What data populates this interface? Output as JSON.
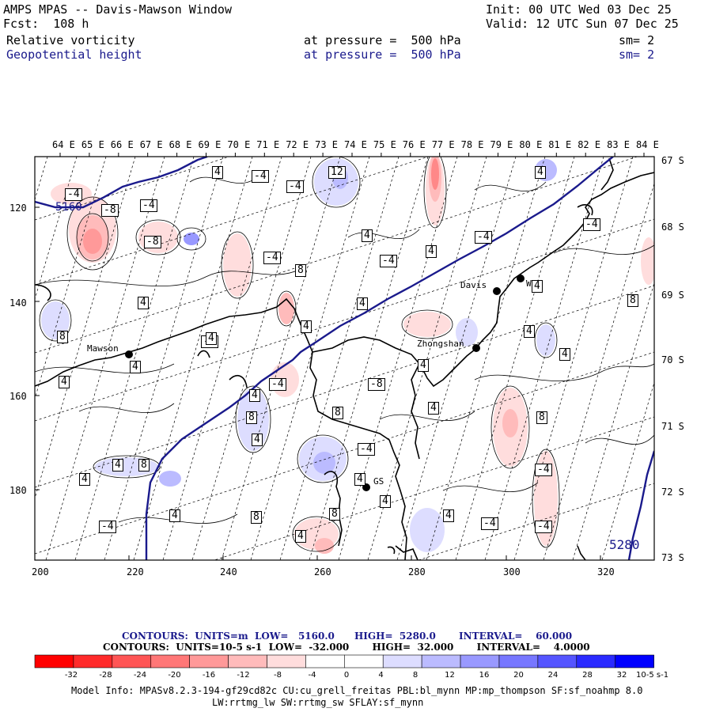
{
  "header": {
    "title": "AMPS MPAS -- Davis-Mawson Window",
    "fcst": "Fcst:  108 h",
    "init": "Init: 00 UTC Wed 03 Dec 25",
    "valid": "Valid: 12 UTC Sun 07 Dec 25",
    "field1": "Relative vorticity",
    "field1_level": "at pressure =  500 hPa",
    "field1_sm": "sm= 2",
    "field2": "Geopotential height",
    "field2_level": "at pressure =  500 hPa",
    "field2_sm": "sm= 2"
  },
  "longitude_labels": [
    "64 E",
    "65 E",
    "66 E",
    "67 E",
    "68 E",
    "69 E",
    "70 E",
    "71 E",
    "72 E",
    "73 E",
    "74 E",
    "75 E",
    "76 E",
    "77 E",
    "78 E",
    "79 E",
    "80 E",
    "81 E",
    "82 E",
    "83 E",
    "84 E"
  ],
  "latitude_labels": [
    "67 S",
    "68 S",
    "69 S",
    "70 S",
    "71 S",
    "72 S",
    "73 S"
  ],
  "grid_y_labels": [
    "120",
    "140",
    "160",
    "180"
  ],
  "grid_x_labels": [
    "200",
    "220",
    "240",
    "260",
    "280",
    "300",
    "320"
  ],
  "stations": {
    "mawson": "Mawson",
    "davis": "Davis",
    "zhongshan": "Zhongshan",
    "whp": "WHP",
    "gs": "GS"
  },
  "contour_labels": [
    "-4",
    "4",
    "-4",
    "12",
    "-4",
    "-8",
    "-4",
    "4",
    "-8",
    "-4",
    "8",
    "4",
    "-4",
    "4",
    "-4",
    "-4",
    "4",
    "4",
    "8",
    "4",
    "8",
    "4",
    "4",
    "-4",
    "4",
    "4",
    "4",
    "-8",
    "-4",
    "4",
    "4",
    "8",
    "8",
    "8",
    "4",
    "4",
    "8",
    "-4",
    "4",
    "-4",
    "4",
    "4",
    "4",
    "8",
    "8",
    "4",
    "-4",
    "-4",
    "-4",
    "4",
    "4",
    "4"
  ],
  "height_labels": {
    "left": "5160",
    "right": "5280"
  },
  "legend": {
    "contours1": "CONTOURS:  UNITS=m  LOW=   5160.0      HIGH=  5280.0       INTERVAL=    60.000",
    "contours2": "CONTOURS:  UNITS=10-5 s-1  LOW=  -32.000       HIGH=  32.000       INTERVAL=    4.0000",
    "colorbar_labels": [
      "-32",
      "-28",
      "-24",
      "-20",
      "-16",
      "-12",
      "-8",
      "-4",
      "0",
      "4",
      "8",
      "12",
      "16",
      "20",
      "24",
      "28",
      "32"
    ],
    "units": "10-5 s-1",
    "colors": [
      "#ff0000",
      "#ff2a2a",
      "#ff5555",
      "#ff7777",
      "#ff9999",
      "#ffbbbb",
      "#ffdddd",
      "#ffffff",
      "#ffffff",
      "#ddddff",
      "#bbbbff",
      "#9999ff",
      "#7777ff",
      "#5555ff",
      "#2a2aff",
      "#0000ff"
    ]
  },
  "model_info": {
    "line1": "Model Info: MPASv8.2.3-194-gf29cd82c CU:cu_grell_freitas PBL:bl_mynn MP:mp_thompson SF:sf_noahmp 8.0",
    "line2": "LW:rrtmg_lw SW:rrtmg_sw SFLAY:sf_mynn"
  }
}
